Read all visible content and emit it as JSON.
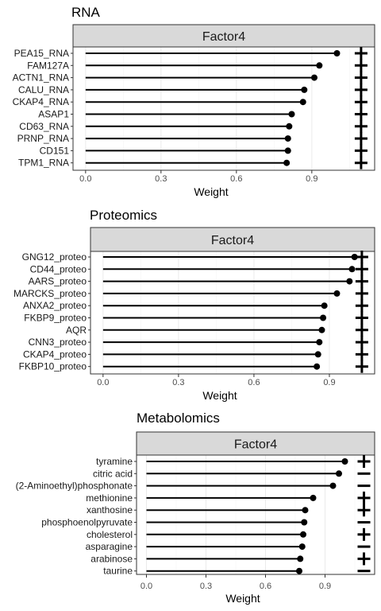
{
  "chart_data": [
    {
      "type": "lollipop",
      "title": "RNA",
      "facet": "Factor4",
      "xlabel": "Weight",
      "xlim": [
        -0.05,
        1.15
      ],
      "xticks": [
        0.0,
        0.3,
        0.6,
        0.9
      ],
      "xtick_labels": [
        "0.0",
        "0.3",
        "0.6",
        "0.9"
      ],
      "grid": true,
      "categories": [
        "PEA15_RNA",
        "FAM127A",
        "ACTN1_RNA",
        "CALU_RNA",
        "CKAP4_RNA",
        "ASAP1",
        "CD63_RNA",
        "PRNP_RNA",
        "CD151",
        "TPM1_RNA"
      ],
      "values": [
        1.0,
        0.93,
        0.91,
        0.87,
        0.865,
        0.82,
        0.81,
        0.805,
        0.805,
        0.8
      ],
      "signs": [
        "+",
        "+",
        "+",
        "+",
        "+",
        "+",
        "+",
        "+",
        "+",
        "+"
      ]
    },
    {
      "type": "lollipop",
      "title": "Proteomics",
      "facet": "Factor4",
      "xlabel": "Weight",
      "xlim": [
        -0.05,
        1.08
      ],
      "xticks": [
        0.0,
        0.3,
        0.6,
        0.9
      ],
      "xtick_labels": [
        "0.0",
        "0.3",
        "0.6",
        "0.9"
      ],
      "grid": true,
      "categories": [
        "GNG12_proteo",
        "CD44_proteo",
        "AARS_proteo",
        "MARCKS_proteo",
        "ANXA2_proteo",
        "FKBP9_proteo",
        "AQR",
        "CNN3_proteo",
        "CKAP4_proteo",
        "FKBP10_proteo"
      ],
      "values": [
        1.0,
        0.99,
        0.98,
        0.93,
        0.88,
        0.875,
        0.87,
        0.86,
        0.855,
        0.85
      ],
      "signs": [
        "+",
        "+",
        "+",
        "+",
        "+",
        "+",
        "+",
        "+",
        "+",
        "+"
      ]
    },
    {
      "type": "lollipop",
      "title": "Metabolomics",
      "facet": "Factor4",
      "xlabel": "Weight",
      "xlim": [
        -0.05,
        1.15
      ],
      "xticks": [
        0.0,
        0.3,
        0.6,
        0.9
      ],
      "xtick_labels": [
        "0.0",
        "0.3",
        "0.6",
        "0.9"
      ],
      "grid": true,
      "categories": [
        "tyramine",
        "citric acid",
        "(2-Aminoethyl)phosphonate",
        "methionine",
        "xanthosine",
        "phosphoenolpyruvate",
        "cholesterol",
        "asparagine",
        "arabinose",
        "taurine"
      ],
      "values": [
        1.0,
        0.97,
        0.94,
        0.84,
        0.8,
        0.795,
        0.79,
        0.785,
        0.775,
        0.77
      ],
      "signs": [
        "+",
        "-",
        "-",
        "+",
        "+",
        "-",
        "+",
        "-",
        "+",
        "-"
      ]
    }
  ]
}
